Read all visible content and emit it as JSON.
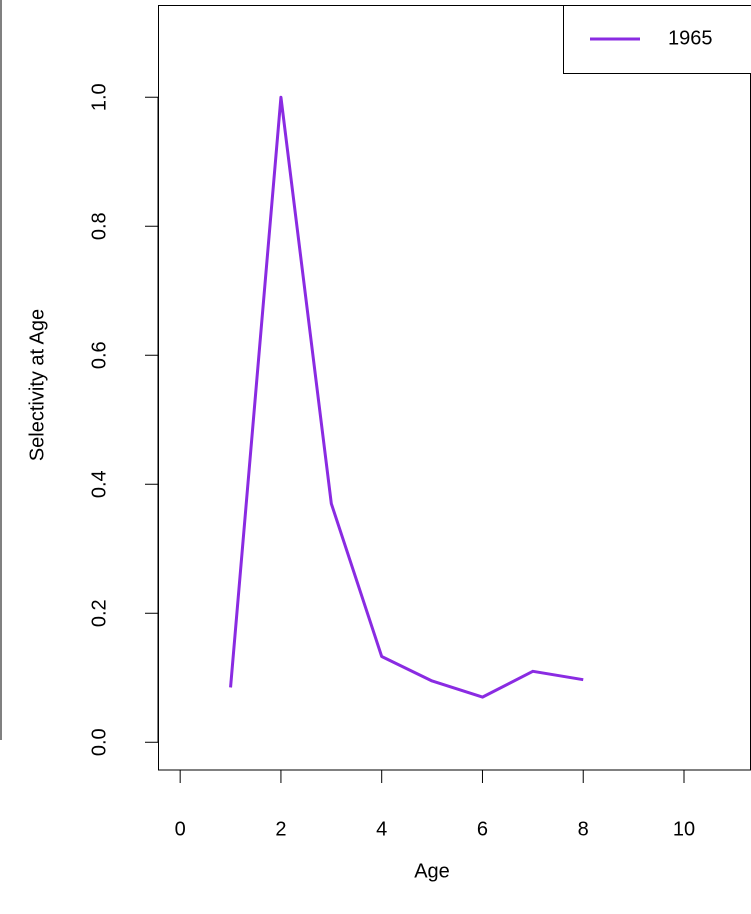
{
  "chart_data": {
    "type": "line",
    "x_label": "Age",
    "y_label": "Selectivity at Age",
    "x": [
      1,
      2,
      3,
      4,
      5,
      6,
      7,
      8
    ],
    "series": [
      {
        "name": "1965",
        "color": "#8a2be2",
        "values": [
          0.085,
          1.0,
          0.37,
          0.133,
          0.095,
          0.07,
          0.11,
          0.097
        ]
      }
    ],
    "xlim": [
      -0.44,
      11.33
    ],
    "ylim": [
      -0.043,
      1.143
    ],
    "xticks": [
      0,
      2,
      4,
      6,
      8,
      10
    ],
    "yticks": [
      {
        "value": 0,
        "label": "0.0"
      },
      0.2,
      0.4,
      0.6,
      0.8,
      {
        "value": 1,
        "label": "1.0"
      }
    ],
    "legend": "top-right"
  }
}
